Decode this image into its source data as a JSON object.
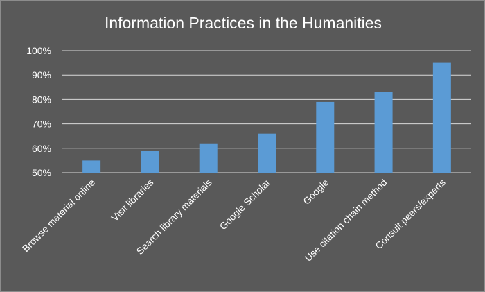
{
  "chart_data": {
    "type": "bar",
    "title": "Information Practices in the Humanities",
    "categories": [
      "Browse material online",
      "Visit libraries",
      "Search library materials",
      "Google Scholar",
      "Google",
      "Use citation chain method",
      "Consult peers/experts"
    ],
    "values": [
      55,
      59,
      62,
      66,
      79,
      83,
      95
    ],
    "ylim": [
      50,
      100
    ],
    "yticks": [
      "50%",
      "60%",
      "70%",
      "80%",
      "90%",
      "100%"
    ],
    "xlabel": "",
    "ylabel": "",
    "grid": true,
    "legend": "none",
    "colors": {
      "background": "#595959",
      "bar": "#5b9bd5",
      "gridline": "#d9d9d9",
      "text": "#ffffff"
    }
  }
}
